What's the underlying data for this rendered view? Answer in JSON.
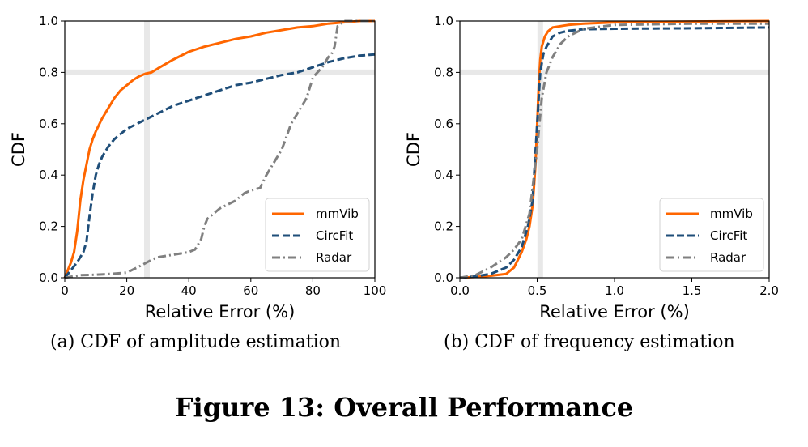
{
  "figure_title": "Figure 13: Overall Performance",
  "chart_data": [
    {
      "type": "line",
      "caption_label": "(a)",
      "caption_text": "CDF of amplitude estimation",
      "xlabel": "Relative Error (%)",
      "ylabel": "CDF",
      "xlim": [
        0,
        100
      ],
      "ylim": [
        0,
        1
      ],
      "xticks": [
        "0",
        "20",
        "40",
        "60",
        "80",
        "100"
      ],
      "yticks": [
        "0.0",
        "0.2",
        "0.4",
        "0.6",
        "0.8",
        "1.0"
      ],
      "grid": true,
      "legend_position": "lower-right",
      "series": [
        {
          "name": "mmVib",
          "color": "#ff6600",
          "dash": "solid",
          "x": [
            0,
            1,
            2,
            3,
            4,
            5,
            6,
            7,
            8,
            9,
            10,
            12,
            14,
            16,
            18,
            20,
            22,
            24,
            26,
            28,
            30,
            35,
            40,
            45,
            50,
            55,
            60,
            65,
            70,
            75,
            80,
            85,
            90,
            95,
            100
          ],
          "y": [
            0,
            0.03,
            0.06,
            0.1,
            0.18,
            0.3,
            0.38,
            0.44,
            0.5,
            0.54,
            0.57,
            0.62,
            0.66,
            0.7,
            0.73,
            0.75,
            0.77,
            0.785,
            0.795,
            0.8,
            0.815,
            0.85,
            0.88,
            0.9,
            0.915,
            0.93,
            0.94,
            0.955,
            0.965,
            0.975,
            0.98,
            0.99,
            0.995,
            1,
            1
          ]
        },
        {
          "name": "CircFit",
          "color": "#1f4e79",
          "dash": "dashed",
          "x": [
            0,
            2,
            4,
            6,
            7,
            8,
            9,
            10,
            11,
            12,
            14,
            16,
            18,
            20,
            25,
            30,
            35,
            40,
            45,
            50,
            55,
            60,
            65,
            70,
            75,
            80,
            85,
            90,
            95,
            100
          ],
          "y": [
            0,
            0.03,
            0.06,
            0.1,
            0.14,
            0.24,
            0.33,
            0.4,
            0.44,
            0.47,
            0.51,
            0.54,
            0.56,
            0.58,
            0.61,
            0.64,
            0.67,
            0.69,
            0.71,
            0.73,
            0.75,
            0.76,
            0.775,
            0.79,
            0.8,
            0.82,
            0.84,
            0.855,
            0.865,
            0.87
          ]
        },
        {
          "name": "Radar",
          "color": "#808080",
          "dash": "dashdot",
          "x": [
            0,
            5,
            10,
            15,
            20,
            25,
            28,
            30,
            35,
            40,
            42,
            44,
            45,
            46,
            50,
            55,
            58,
            60,
            63,
            65,
            70,
            73,
            75,
            78,
            80,
            83,
            85,
            86,
            87,
            88,
            89,
            90,
            95,
            100
          ],
          "y": [
            0,
            0.01,
            0.012,
            0.015,
            0.02,
            0.05,
            0.07,
            0.08,
            0.09,
            0.1,
            0.11,
            0.15,
            0.2,
            0.23,
            0.27,
            0.3,
            0.33,
            0.34,
            0.35,
            0.4,
            0.5,
            0.6,
            0.64,
            0.7,
            0.78,
            0.82,
            0.86,
            0.87,
            0.9,
            0.98,
            0.99,
            1,
            1,
            1
          ]
        }
      ]
    },
    {
      "type": "line",
      "caption_label": "(b)",
      "caption_text": "CDF of frequency estimation",
      "xlabel": "Relative Error (%)",
      "ylabel": "CDF",
      "xlim": [
        0,
        2
      ],
      "ylim": [
        0,
        1
      ],
      "xticks": [
        "0.0",
        "0.5",
        "1.0",
        "1.5",
        "2.0"
      ],
      "yticks": [
        "0.0",
        "0.2",
        "0.4",
        "0.6",
        "0.8",
        "1.0"
      ],
      "grid": true,
      "legend_position": "lower-right",
      "series": [
        {
          "name": "mmVib",
          "color": "#ff6600",
          "dash": "solid",
          "x": [
            0,
            0.1,
            0.2,
            0.3,
            0.35,
            0.4,
            0.43,
            0.45,
            0.47,
            0.48,
            0.49,
            0.5,
            0.51,
            0.52,
            0.53,
            0.55,
            0.57,
            0.6,
            0.65,
            0.7,
            0.8,
            1,
            1.5,
            2
          ],
          "y": [
            0,
            0.003,
            0.008,
            0.015,
            0.04,
            0.1,
            0.15,
            0.2,
            0.28,
            0.36,
            0.45,
            0.6,
            0.75,
            0.85,
            0.9,
            0.94,
            0.96,
            0.975,
            0.98,
            0.985,
            0.99,
            0.995,
            0.998,
            1
          ]
        },
        {
          "name": "CircFit",
          "color": "#1f4e79",
          "dash": "dashed",
          "x": [
            0,
            0.1,
            0.2,
            0.3,
            0.35,
            0.4,
            0.44,
            0.47,
            0.5,
            0.52,
            0.54,
            0.56,
            0.58,
            0.6,
            0.65,
            0.7,
            0.8,
            1,
            1.5,
            2
          ],
          "y": [
            0,
            0.005,
            0.015,
            0.04,
            0.07,
            0.12,
            0.2,
            0.3,
            0.6,
            0.8,
            0.87,
            0.9,
            0.92,
            0.94,
            0.955,
            0.962,
            0.968,
            0.97,
            0.972,
            0.975
          ]
        },
        {
          "name": "Radar",
          "color": "#808080",
          "dash": "dashdot",
          "x": [
            0,
            0.1,
            0.2,
            0.3,
            0.35,
            0.4,
            0.45,
            0.5,
            0.53,
            0.56,
            0.6,
            0.65,
            0.7,
            0.8,
            1,
            1.5,
            2
          ],
          "y": [
            0,
            0.01,
            0.04,
            0.08,
            0.11,
            0.15,
            0.25,
            0.5,
            0.7,
            0.8,
            0.86,
            0.91,
            0.94,
            0.97,
            0.985,
            0.99,
            0.99
          ]
        }
      ]
    }
  ]
}
